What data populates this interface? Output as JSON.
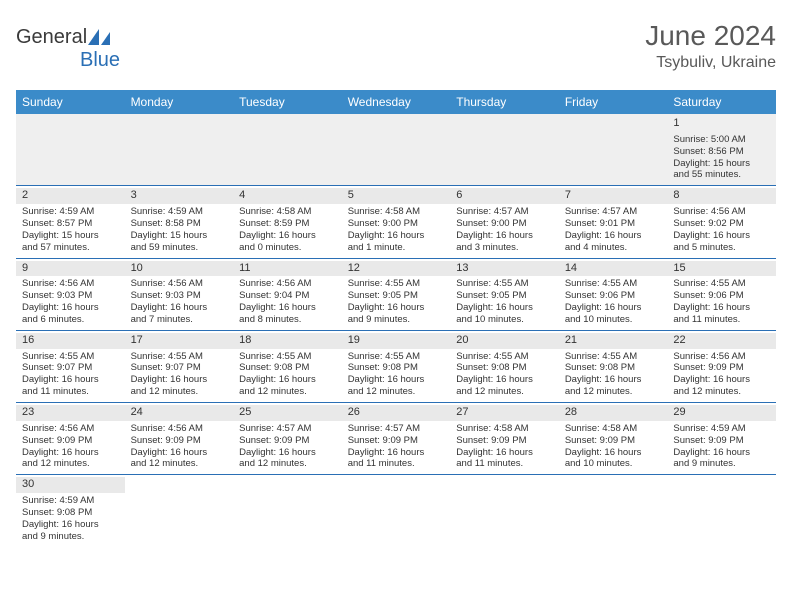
{
  "brand": {
    "general": "General",
    "blue": "Blue"
  },
  "title": {
    "month": "June 2024",
    "location": "Tsybuliv, Ukraine"
  },
  "style": {
    "header_bg": "#3b8bc9",
    "header_text": "#ffffff",
    "daynum_bg": "#e9e9e9",
    "row_border": "#2a6fb5",
    "body_font_size": 9.5,
    "title_color": "#595959"
  },
  "daynames": [
    "Sunday",
    "Monday",
    "Tuesday",
    "Wednesday",
    "Thursday",
    "Friday",
    "Saturday"
  ],
  "weeks": [
    [
      null,
      null,
      null,
      null,
      null,
      null,
      {
        "d": "1",
        "sr": "Sunrise: 5:00 AM",
        "ss": "Sunset: 8:56 PM",
        "dl1": "Daylight: 15 hours",
        "dl2": "and 55 minutes."
      }
    ],
    [
      {
        "d": "2",
        "sr": "Sunrise: 4:59 AM",
        "ss": "Sunset: 8:57 PM",
        "dl1": "Daylight: 15 hours",
        "dl2": "and 57 minutes."
      },
      {
        "d": "3",
        "sr": "Sunrise: 4:59 AM",
        "ss": "Sunset: 8:58 PM",
        "dl1": "Daylight: 15 hours",
        "dl2": "and 59 minutes."
      },
      {
        "d": "4",
        "sr": "Sunrise: 4:58 AM",
        "ss": "Sunset: 8:59 PM",
        "dl1": "Daylight: 16 hours",
        "dl2": "and 0 minutes."
      },
      {
        "d": "5",
        "sr": "Sunrise: 4:58 AM",
        "ss": "Sunset: 9:00 PM",
        "dl1": "Daylight: 16 hours",
        "dl2": "and 1 minute."
      },
      {
        "d": "6",
        "sr": "Sunrise: 4:57 AM",
        "ss": "Sunset: 9:00 PM",
        "dl1": "Daylight: 16 hours",
        "dl2": "and 3 minutes."
      },
      {
        "d": "7",
        "sr": "Sunrise: 4:57 AM",
        "ss": "Sunset: 9:01 PM",
        "dl1": "Daylight: 16 hours",
        "dl2": "and 4 minutes."
      },
      {
        "d": "8",
        "sr": "Sunrise: 4:56 AM",
        "ss": "Sunset: 9:02 PM",
        "dl1": "Daylight: 16 hours",
        "dl2": "and 5 minutes."
      }
    ],
    [
      {
        "d": "9",
        "sr": "Sunrise: 4:56 AM",
        "ss": "Sunset: 9:03 PM",
        "dl1": "Daylight: 16 hours",
        "dl2": "and 6 minutes."
      },
      {
        "d": "10",
        "sr": "Sunrise: 4:56 AM",
        "ss": "Sunset: 9:03 PM",
        "dl1": "Daylight: 16 hours",
        "dl2": "and 7 minutes."
      },
      {
        "d": "11",
        "sr": "Sunrise: 4:56 AM",
        "ss": "Sunset: 9:04 PM",
        "dl1": "Daylight: 16 hours",
        "dl2": "and 8 minutes."
      },
      {
        "d": "12",
        "sr": "Sunrise: 4:55 AM",
        "ss": "Sunset: 9:05 PM",
        "dl1": "Daylight: 16 hours",
        "dl2": "and 9 minutes."
      },
      {
        "d": "13",
        "sr": "Sunrise: 4:55 AM",
        "ss": "Sunset: 9:05 PM",
        "dl1": "Daylight: 16 hours",
        "dl2": "and 10 minutes."
      },
      {
        "d": "14",
        "sr": "Sunrise: 4:55 AM",
        "ss": "Sunset: 9:06 PM",
        "dl1": "Daylight: 16 hours",
        "dl2": "and 10 minutes."
      },
      {
        "d": "15",
        "sr": "Sunrise: 4:55 AM",
        "ss": "Sunset: 9:06 PM",
        "dl1": "Daylight: 16 hours",
        "dl2": "and 11 minutes."
      }
    ],
    [
      {
        "d": "16",
        "sr": "Sunrise: 4:55 AM",
        "ss": "Sunset: 9:07 PM",
        "dl1": "Daylight: 16 hours",
        "dl2": "and 11 minutes."
      },
      {
        "d": "17",
        "sr": "Sunrise: 4:55 AM",
        "ss": "Sunset: 9:07 PM",
        "dl1": "Daylight: 16 hours",
        "dl2": "and 12 minutes."
      },
      {
        "d": "18",
        "sr": "Sunrise: 4:55 AM",
        "ss": "Sunset: 9:08 PM",
        "dl1": "Daylight: 16 hours",
        "dl2": "and 12 minutes."
      },
      {
        "d": "19",
        "sr": "Sunrise: 4:55 AM",
        "ss": "Sunset: 9:08 PM",
        "dl1": "Daylight: 16 hours",
        "dl2": "and 12 minutes."
      },
      {
        "d": "20",
        "sr": "Sunrise: 4:55 AM",
        "ss": "Sunset: 9:08 PM",
        "dl1": "Daylight: 16 hours",
        "dl2": "and 12 minutes."
      },
      {
        "d": "21",
        "sr": "Sunrise: 4:55 AM",
        "ss": "Sunset: 9:08 PM",
        "dl1": "Daylight: 16 hours",
        "dl2": "and 12 minutes."
      },
      {
        "d": "22",
        "sr": "Sunrise: 4:56 AM",
        "ss": "Sunset: 9:09 PM",
        "dl1": "Daylight: 16 hours",
        "dl2": "and 12 minutes."
      }
    ],
    [
      {
        "d": "23",
        "sr": "Sunrise: 4:56 AM",
        "ss": "Sunset: 9:09 PM",
        "dl1": "Daylight: 16 hours",
        "dl2": "and 12 minutes."
      },
      {
        "d": "24",
        "sr": "Sunrise: 4:56 AM",
        "ss": "Sunset: 9:09 PM",
        "dl1": "Daylight: 16 hours",
        "dl2": "and 12 minutes."
      },
      {
        "d": "25",
        "sr": "Sunrise: 4:57 AM",
        "ss": "Sunset: 9:09 PM",
        "dl1": "Daylight: 16 hours",
        "dl2": "and 12 minutes."
      },
      {
        "d": "26",
        "sr": "Sunrise: 4:57 AM",
        "ss": "Sunset: 9:09 PM",
        "dl1": "Daylight: 16 hours",
        "dl2": "and 11 minutes."
      },
      {
        "d": "27",
        "sr": "Sunrise: 4:58 AM",
        "ss": "Sunset: 9:09 PM",
        "dl1": "Daylight: 16 hours",
        "dl2": "and 11 minutes."
      },
      {
        "d": "28",
        "sr": "Sunrise: 4:58 AM",
        "ss": "Sunset: 9:09 PM",
        "dl1": "Daylight: 16 hours",
        "dl2": "and 10 minutes."
      },
      {
        "d": "29",
        "sr": "Sunrise: 4:59 AM",
        "ss": "Sunset: 9:09 PM",
        "dl1": "Daylight: 16 hours",
        "dl2": "and 9 minutes."
      }
    ],
    [
      {
        "d": "30",
        "sr": "Sunrise: 4:59 AM",
        "ss": "Sunset: 9:08 PM",
        "dl1": "Daylight: 16 hours",
        "dl2": "and 9 minutes."
      },
      null,
      null,
      null,
      null,
      null,
      null
    ]
  ]
}
